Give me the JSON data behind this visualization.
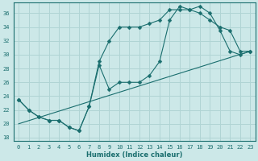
{
  "xlabel": "Humidex (Indice chaleur)",
  "ylabel": "",
  "xlim": [
    -0.5,
    23.5
  ],
  "ylim": [
    17.5,
    37.5
  ],
  "yticks": [
    18,
    20,
    22,
    24,
    26,
    28,
    30,
    32,
    34,
    36
  ],
  "xticks": [
    0,
    1,
    2,
    3,
    4,
    5,
    6,
    7,
    8,
    9,
    10,
    11,
    12,
    13,
    14,
    15,
    16,
    17,
    18,
    19,
    20,
    21,
    22,
    23
  ],
  "bg_color": "#cce8e8",
  "grid_color": "#b0d4d4",
  "line_color": "#1a6e6e",
  "line1_x": [
    0,
    1,
    2,
    3,
    4,
    5,
    6,
    7,
    8,
    9,
    10,
    11,
    12,
    13,
    14,
    15,
    16,
    17,
    18,
    19,
    20,
    21,
    22,
    23
  ],
  "line1_y": [
    23.5,
    22,
    21,
    20.5,
    20.5,
    19.5,
    19.0,
    22.5,
    29,
    32,
    34,
    34,
    34,
    34.5,
    35,
    36.5,
    36.5,
    36.5,
    36,
    35,
    34,
    33.5,
    30.5,
    30.5
  ],
  "line2_x": [
    0,
    1,
    2,
    3,
    4,
    5,
    6,
    7,
    8,
    9,
    10,
    11,
    12,
    13,
    14,
    15,
    16,
    17,
    18,
    19,
    20,
    21,
    22,
    23
  ],
  "line2_y": [
    23.5,
    22,
    21,
    20.5,
    20.5,
    19.5,
    19.0,
    22.5,
    28.5,
    25,
    26,
    26,
    26,
    27,
    29,
    35,
    37,
    36.5,
    37,
    36,
    33.5,
    30.5,
    30,
    30.5
  ],
  "line3_x": [
    0,
    23
  ],
  "line3_y": [
    20.0,
    30.5
  ],
  "marker": "D",
  "markersize": 2.5
}
